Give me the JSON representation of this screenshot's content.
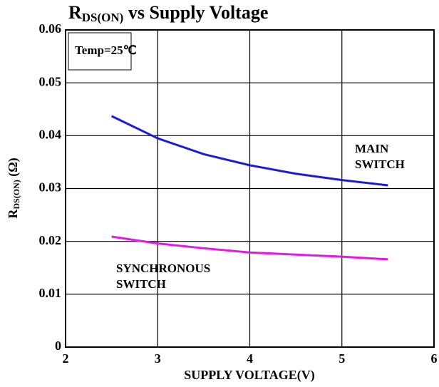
{
  "chart_data": {
    "type": "line",
    "title_parts": [
      "R",
      "DS(ON)",
      " vs Supply Voltage"
    ],
    "ylabel_parts": [
      "R",
      "DS(ON)",
      " (Ω)"
    ],
    "xlabel": "SUPPLY VOLTAGE(V)",
    "annotations": [
      {
        "lines": [
          "Temp=25℃"
        ],
        "boxed": true
      },
      {
        "lines": [
          "MAIN",
          "SWITCH"
        ],
        "boxed": false
      },
      {
        "lines": [
          "SYNCHRONOUS",
          "SWITCH"
        ],
        "boxed": false
      }
    ],
    "x": [
      2.5,
      3,
      3.5,
      4,
      4.5,
      5,
      5.5
    ],
    "series": [
      {
        "name": "MAIN SWITCH",
        "color": "#1c1cd4",
        "values": [
          0.0437,
          0.0395,
          0.0365,
          0.0344,
          0.0328,
          0.0316,
          0.0306
        ]
      },
      {
        "name": "SYNCHRONOUS SWITCH",
        "color": "#e418e4",
        "values": [
          0.0209,
          0.0196,
          0.0187,
          0.0179,
          0.0175,
          0.0171,
          0.0166
        ]
      }
    ],
    "xlim": [
      2,
      6
    ],
    "xticks": [
      2,
      3,
      4,
      5,
      6
    ],
    "ylim": [
      0,
      0.06
    ],
    "yticks": [
      0,
      0.01,
      0.02,
      0.03,
      0.04,
      0.05,
      0.06
    ],
    "grid": true
  }
}
